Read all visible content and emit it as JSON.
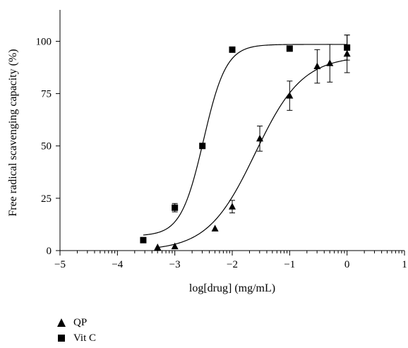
{
  "chart_data": {
    "type": "scatter",
    "xlabel": "log[drug] (mg/mL)",
    "ylabel": "Free radical scavenging capacity (%)",
    "xlim": [
      -5,
      1
    ],
    "ylim": [
      0,
      115
    ],
    "x_ticks": [
      -5,
      -4,
      -3,
      -2,
      -1,
      0,
      1
    ],
    "y_ticks": [
      0,
      25,
      50,
      75,
      100
    ],
    "x_tick_labels": [
      "−5",
      "−4",
      "−3",
      "−2",
      "−1",
      "0",
      "1"
    ],
    "y_tick_labels": [
      "0",
      "25",
      "50",
      "75",
      "100"
    ],
    "grid": false,
    "legend_position": "bottom-left",
    "series": [
      {
        "name": "QP",
        "marker": "triangle",
        "x": [
          -3.3,
          -3.0,
          -2.3,
          -2.0,
          -1.52,
          -1.0,
          -0.52,
          -0.3,
          0.0
        ],
        "y": [
          1.5,
          2,
          10.5,
          21,
          53.5,
          74,
          88,
          89.5,
          94
        ],
        "error": [
          0,
          0,
          0,
          3,
          6,
          7,
          8,
          9,
          9
        ],
        "fit": {
          "model": "sigmoid",
          "bottom": 0,
          "top": 93,
          "logEC50": -1.6,
          "hill": 1.05
        }
      },
      {
        "name": "Vit C",
        "marker": "square",
        "x": [
          -3.55,
          -3.0,
          -2.52,
          -2.0,
          -1.0,
          0.0
        ],
        "y": [
          5,
          20.5,
          50,
          96,
          96.5,
          97
        ],
        "error": [
          0,
          2,
          0,
          0,
          0,
          6
        ],
        "fit": {
          "model": "sigmoid",
          "bottom": 7,
          "top": 98.5,
          "logEC50": -2.5,
          "hill": 2.2
        }
      }
    ]
  },
  "legend": {
    "items": [
      {
        "label": "QP",
        "marker": "triangle"
      },
      {
        "label": "Vit C",
        "marker": "square"
      }
    ]
  },
  "colors": {
    "marker": "#000000",
    "line": "#000000"
  }
}
